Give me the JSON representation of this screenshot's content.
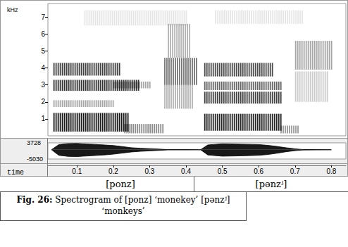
{
  "chart_data": {
    "type": "spectrogram",
    "x_label": "time",
    "xlim": [
      0.02,
      0.84
    ],
    "xticks": [
      0.1,
      0.2,
      0.3,
      0.4,
      0.5,
      0.6,
      0.7,
      0.8
    ],
    "y_label": "kHz",
    "ylim": [
      0,
      7.8
    ],
    "yticks": [
      1,
      2,
      3,
      4,
      5,
      6,
      7
    ],
    "regions": [
      {
        "t": [
          0.035,
          0.24
        ],
        "f": [
          0.25,
          1.35
        ],
        "level": 0.9
      },
      {
        "t": [
          0.23,
          0.34
        ],
        "f": [
          0.15,
          0.7
        ],
        "level": 0.45
      },
      {
        "t": [
          0.035,
          0.2
        ],
        "f": [
          1.7,
          2.1
        ],
        "level": 0.35
      },
      {
        "t": [
          0.035,
          0.27
        ],
        "f": [
          2.65,
          3.3
        ],
        "level": 0.8
      },
      {
        "t": [
          0.035,
          0.22
        ],
        "f": [
          3.55,
          4.3
        ],
        "level": 0.75
      },
      {
        "t": [
          0.2,
          0.3
        ],
        "f": [
          2.8,
          3.2
        ],
        "level": 0.35
      },
      {
        "t": [
          0.34,
          0.43
        ],
        "f": [
          3.0,
          4.6
        ],
        "level": 0.55
      },
      {
        "t": [
          0.34,
          0.42
        ],
        "f": [
          1.6,
          3.0
        ],
        "level": 0.3
      },
      {
        "t": [
          0.35,
          0.41
        ],
        "f": [
          4.6,
          6.6
        ],
        "level": 0.3
      },
      {
        "t": [
          0.45,
          0.66
        ],
        "f": [
          0.3,
          1.3
        ],
        "level": 0.85
      },
      {
        "t": [
          0.66,
          0.71
        ],
        "f": [
          0.15,
          0.6
        ],
        "level": 0.4
      },
      {
        "t": [
          0.45,
          0.66
        ],
        "f": [
          1.9,
          2.6
        ],
        "level": 0.75
      },
      {
        "t": [
          0.45,
          0.66
        ],
        "f": [
          2.7,
          3.2
        ],
        "level": 0.6
      },
      {
        "t": [
          0.45,
          0.64
        ],
        "f": [
          3.5,
          4.3
        ],
        "level": 0.7
      },
      {
        "t": [
          0.7,
          0.8
        ],
        "f": [
          3.9,
          5.6
        ],
        "level": 0.35
      },
      {
        "t": [
          0.7,
          0.79
        ],
        "f": [
          2.0,
          3.8
        ],
        "level": 0.2
      },
      {
        "t": [
          0.12,
          0.4
        ],
        "f": [
          6.5,
          7.4
        ],
        "level": 0.1
      },
      {
        "t": [
          0.48,
          0.72
        ],
        "f": [
          6.6,
          7.4
        ],
        "level": 0.1
      }
    ],
    "waveform": {
      "ylim": [
        -5030,
        3728
      ],
      "yticks": [
        -5030,
        3728
      ],
      "x": [
        0.03,
        0.05,
        0.075,
        0.1,
        0.125,
        0.15,
        0.175,
        0.2,
        0.225,
        0.25,
        0.275,
        0.3,
        0.325,
        0.35,
        0.4,
        0.44,
        0.46,
        0.5,
        0.55,
        0.6,
        0.625,
        0.65,
        0.675,
        0.7,
        0.72,
        0.76,
        0.8
      ],
      "upper": [
        0,
        2800,
        3300,
        3400,
        3100,
        2900,
        2600,
        2300,
        1700,
        1100,
        800,
        600,
        350,
        100,
        80,
        0,
        2600,
        3200,
        3000,
        2800,
        2400,
        1800,
        1100,
        500,
        150,
        80,
        0
      ],
      "lower": [
        0,
        -3000,
        -3600,
        -3700,
        -3400,
        -3100,
        -2800,
        -2400,
        -1800,
        -1200,
        -850,
        -600,
        -350,
        -100,
        -80,
        0,
        -2800,
        -3500,
        -3300,
        -3000,
        -2600,
        -1900,
        -1100,
        -500,
        -150,
        -80,
        0
      ]
    },
    "segments": [
      "[ponz]",
      "[pənzʲ]"
    ],
    "caption": {
      "label": "Fig. 26:",
      "text": "Spectrogram of  [ponz] ‘monekey’  [pənzʲ] ‘monkeys’"
    }
  }
}
